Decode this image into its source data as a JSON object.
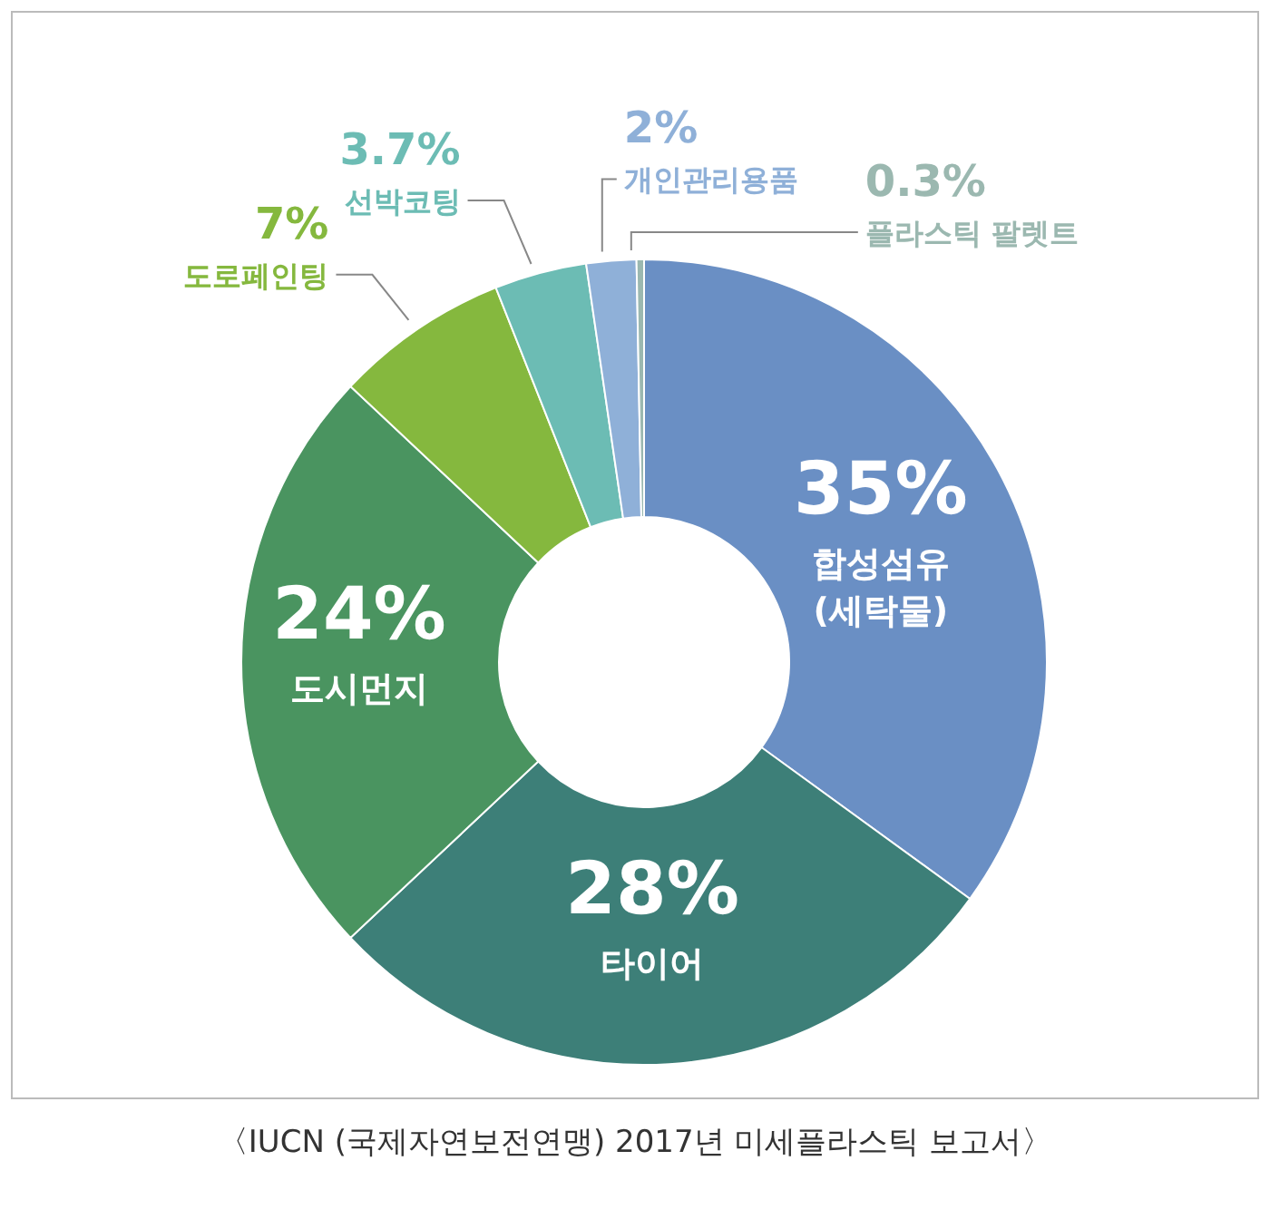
{
  "chart_data": {
    "type": "donut",
    "categories": [
      "합성섬유 (세탁물)",
      "타이어",
      "도시먼지",
      "도로페인팅",
      "선박코팅",
      "개인관리용품",
      "플라스틱 팔렛트"
    ],
    "values": [
      35,
      28,
      24,
      7,
      3.7,
      2,
      0.3
    ],
    "value_labels": [
      "35%",
      "28%",
      "24%",
      "7%",
      "3.7%",
      "2%",
      "0.3%"
    ],
    "colors": [
      "#6a8fc4",
      "#3d7f78",
      "#4a9460",
      "#85b83e",
      "#6cbcb4",
      "#8fb0d8",
      "#9bb8b0"
    ],
    "annotations": [
      "〈IUCN (국제자연보전연맹) 2017년 미세플라스틱 보고서〉"
    ]
  }
}
